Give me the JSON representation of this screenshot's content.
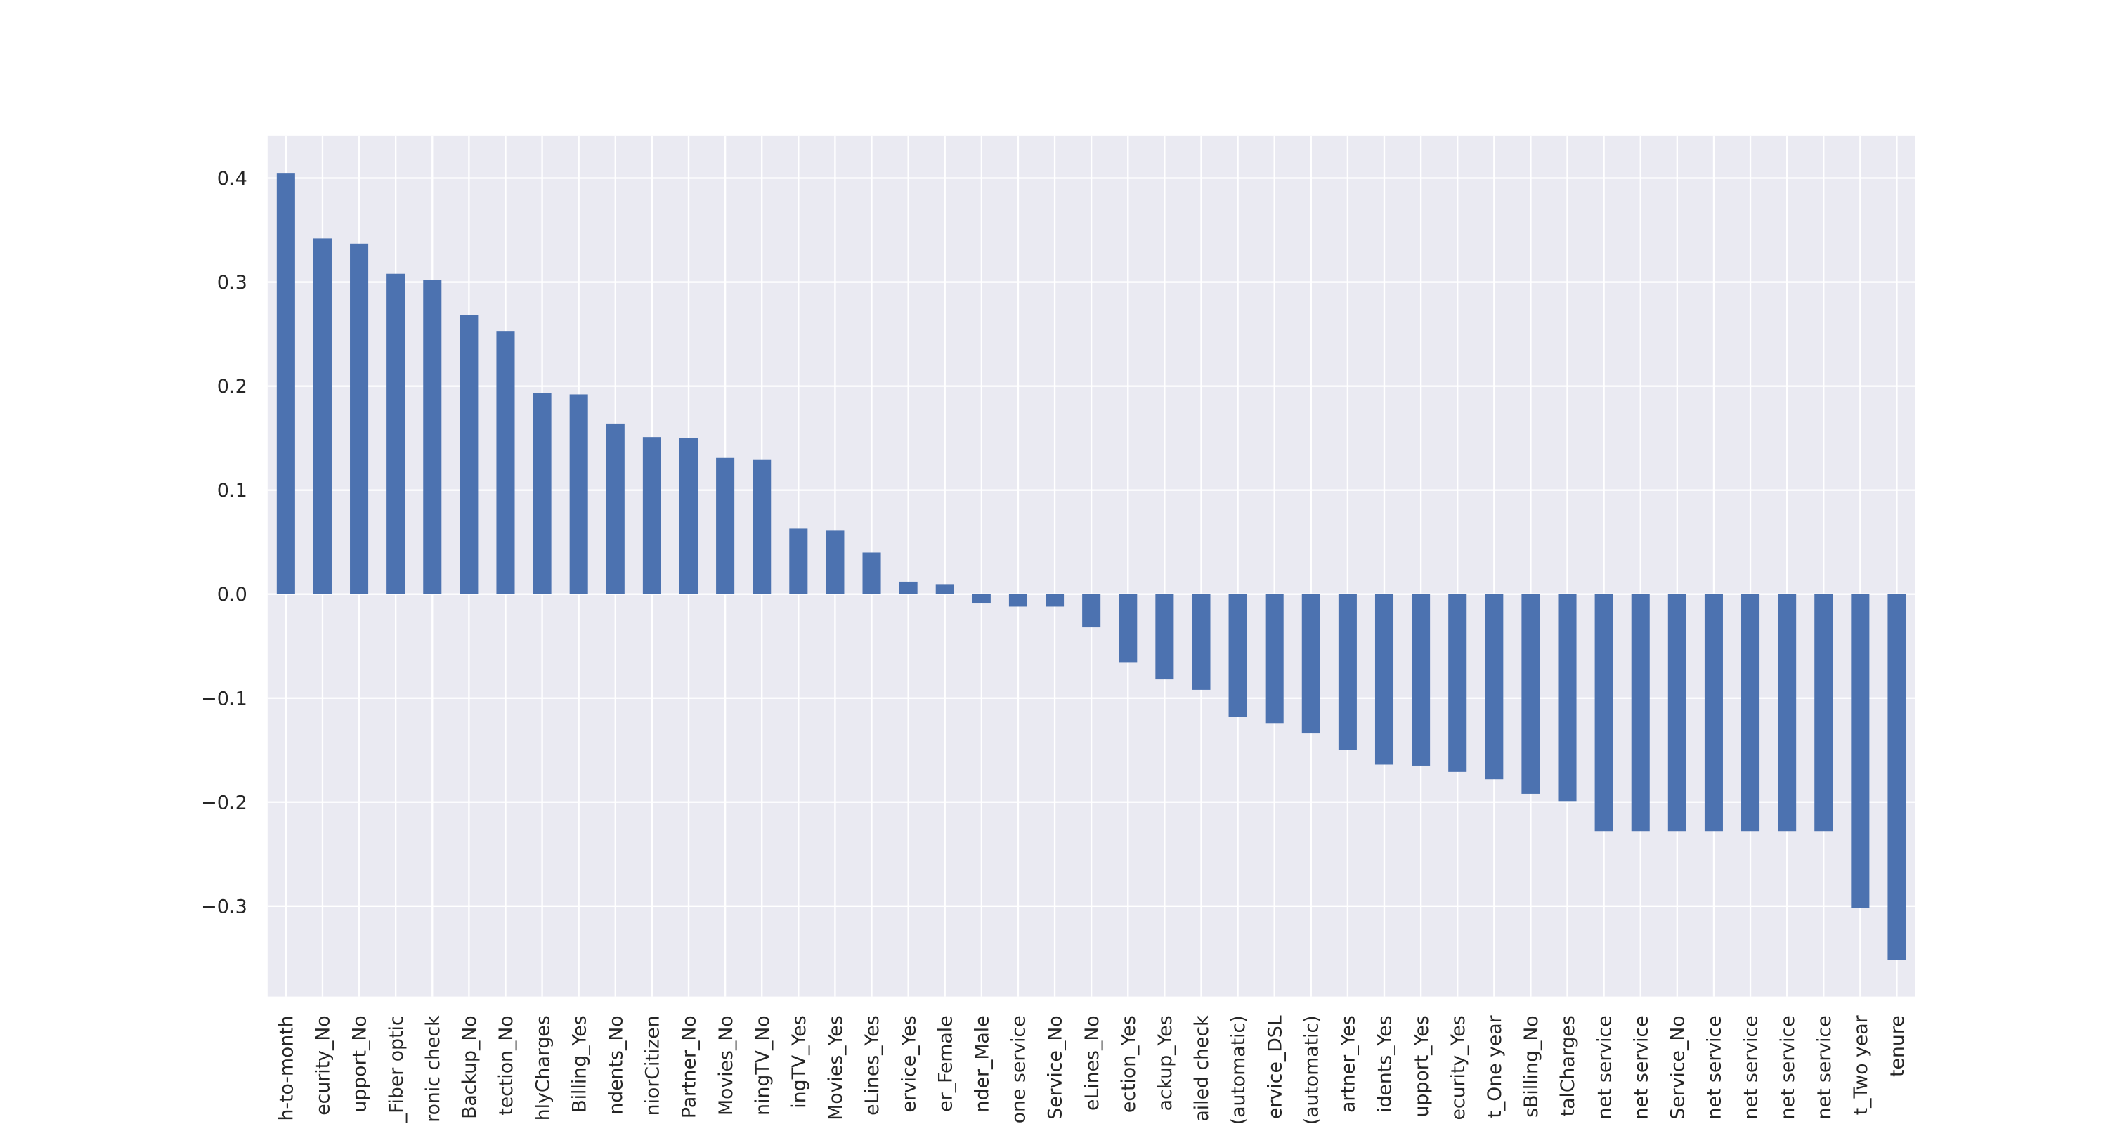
{
  "chart_data": {
    "type": "bar",
    "categories": [
      "h-to-month",
      "ecurity_No",
      "upport_No",
      "_Fiber optic",
      "ronic check",
      "Backup_No",
      "tection_No",
      "hlyCharges",
      "Billing_Yes",
      "ndents_No",
      "niorCitizen",
      "Partner_No",
      "Movies_No",
      "ningTV_No",
      "ingTV_Yes",
      "Movies_Yes",
      "eLines_Yes",
      "ervice_Yes",
      "er_Female",
      "nder_Male",
      "one service",
      "Service_No",
      "eLines_No",
      "ection_Yes",
      "ackup_Yes",
      "ailed check",
      "(automatic)",
      "ervice_DSL",
      "(automatic)",
      "artner_Yes",
      "idents_Yes",
      "upport_Yes",
      "ecurity_Yes",
      "t_One year",
      "sBilling_No",
      "talCharges",
      "net service",
      "net service",
      "Service_No",
      "net service",
      "net service",
      "net service",
      "net service",
      "t_Two year",
      "tenure"
    ],
    "values": [
      0.405,
      0.342,
      0.337,
      0.308,
      0.302,
      0.268,
      0.253,
      0.193,
      0.192,
      0.164,
      0.151,
      0.15,
      0.131,
      0.129,
      0.063,
      0.061,
      0.04,
      0.012,
      0.009,
      -0.009,
      -0.012,
      -0.012,
      -0.032,
      -0.066,
      -0.082,
      -0.092,
      -0.118,
      -0.124,
      -0.134,
      -0.15,
      -0.164,
      -0.165,
      -0.171,
      -0.178,
      -0.192,
      -0.199,
      -0.228,
      -0.228,
      -0.228,
      -0.228,
      -0.228,
      -0.228,
      -0.228,
      -0.302,
      -0.352
    ],
    "color": "#4c72b0",
    "ylim": [
      -0.387,
      0.441
    ],
    "yticks": [
      {
        "value": -0.3,
        "label": "−0.3"
      },
      {
        "value": -0.2,
        "label": "−0.2"
      },
      {
        "value": -0.1,
        "label": "−0.1"
      },
      {
        "value": 0,
        "label": "0.0"
      },
      0.1,
      0.2,
      0.3,
      0.4
    ],
    "grid": true
  }
}
